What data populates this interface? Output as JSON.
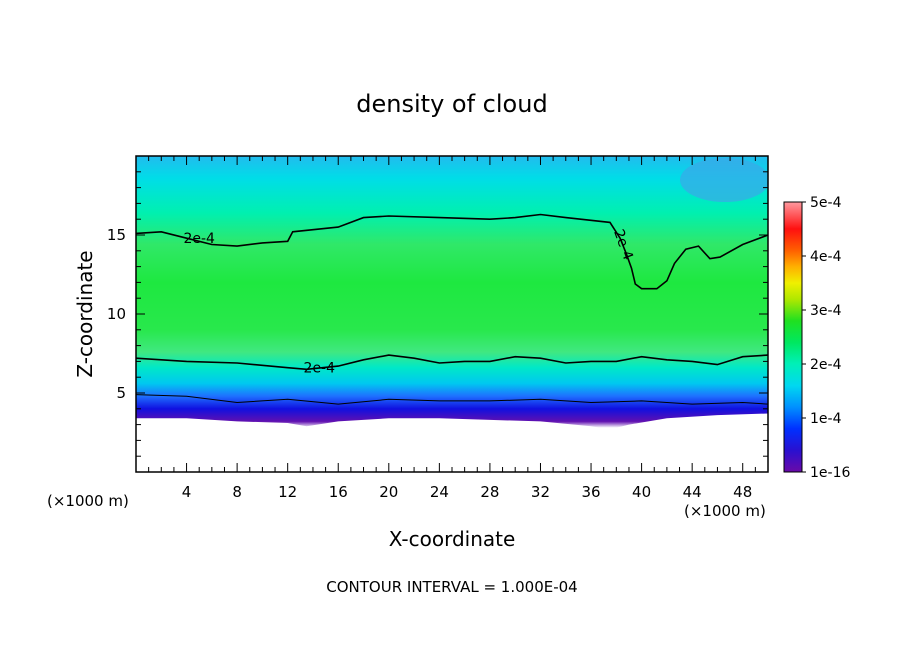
{
  "chart_data": {
    "type": "heatmap",
    "title": "density of cloud",
    "xlabel": "X-coordinate",
    "ylabel": "Z-coordinate",
    "x_unit": "(×1000 m)",
    "y_unit": "(×1000 m)",
    "xlim": [
      0,
      50
    ],
    "ylim": [
      0,
      20
    ],
    "x_ticks": [
      4,
      8,
      12,
      16,
      20,
      24,
      28,
      32,
      36,
      40,
      44,
      48
    ],
    "y_ticks": [
      5,
      10,
      15
    ],
    "footer": "CONTOUR INTERVAL = 1.000E-04",
    "colorbar": {
      "min": 1e-16,
      "max": 0.0005,
      "tick_values": [
        1e-16,
        0.0001,
        0.0002,
        0.0003,
        0.0004,
        0.0005
      ],
      "tick_labels": [
        "1e-16",
        "1e-4",
        "2e-4",
        "3e-4",
        "4e-4",
        "5e-4"
      ]
    },
    "contour_labels": [
      {
        "text": "2e-4",
        "x": 5.0,
        "z": 14.8
      },
      {
        "text": "2e-4",
        "x": 38.6,
        "z": 14.4
      },
      {
        "text": "2e-4",
        "x": 14.5,
        "z": 6.6
      }
    ],
    "contours": [
      {
        "level": 0.0002,
        "name": "upper",
        "points": [
          [
            0,
            15.1
          ],
          [
            2,
            15.2
          ],
          [
            4,
            14.8
          ],
          [
            6,
            14.4
          ],
          [
            8,
            14.3
          ],
          [
            10,
            14.5
          ],
          [
            12,
            14.6
          ],
          [
            12.4,
            15.2
          ],
          [
            16,
            15.5
          ],
          [
            18,
            16.1
          ],
          [
            20,
            16.2
          ],
          [
            24,
            16.1
          ],
          [
            28,
            16.0
          ],
          [
            30,
            16.1
          ],
          [
            32,
            16.3
          ],
          [
            34,
            16.1
          ],
          [
            37.5,
            15.8
          ],
          [
            38.3,
            14.8
          ],
          [
            38.8,
            13.8
          ],
          [
            39.2,
            12.9
          ],
          [
            39.5,
            11.9
          ],
          [
            40,
            11.6
          ],
          [
            41.2,
            11.6
          ],
          [
            42,
            12.1
          ],
          [
            42.6,
            13.2
          ],
          [
            43.5,
            14.1
          ],
          [
            44.5,
            14.3
          ],
          [
            45.4,
            13.5
          ],
          [
            46.2,
            13.6
          ],
          [
            48,
            14.4
          ],
          [
            50,
            15.0
          ]
        ]
      },
      {
        "level": 0.0002,
        "name": "lower",
        "points": [
          [
            0,
            7.2
          ],
          [
            4,
            7.0
          ],
          [
            8,
            6.9
          ],
          [
            12,
            6.6
          ],
          [
            13.5,
            6.5
          ],
          [
            16,
            6.7
          ],
          [
            18,
            7.1
          ],
          [
            20,
            7.4
          ],
          [
            22,
            7.2
          ],
          [
            24,
            6.9
          ],
          [
            26,
            7.0
          ],
          [
            28,
            7.0
          ],
          [
            30,
            7.3
          ],
          [
            32,
            7.2
          ],
          [
            34,
            6.9
          ],
          [
            36,
            7.0
          ],
          [
            38,
            7.0
          ],
          [
            40,
            7.3
          ],
          [
            42,
            7.1
          ],
          [
            44,
            7.0
          ],
          [
            46,
            6.8
          ],
          [
            48,
            7.3
          ],
          [
            50,
            7.4
          ]
        ]
      },
      {
        "level": 0.0001,
        "name": "low",
        "points": [
          [
            0,
            4.9
          ],
          [
            4,
            4.8
          ],
          [
            8,
            4.4
          ],
          [
            12,
            4.6
          ],
          [
            16,
            4.3
          ],
          [
            20,
            4.6
          ],
          [
            24,
            4.5
          ],
          [
            28,
            4.5
          ],
          [
            32,
            4.6
          ],
          [
            36,
            4.4
          ],
          [
            40,
            4.5
          ],
          [
            44,
            4.3
          ],
          [
            48,
            4.4
          ],
          [
            50,
            4.3
          ]
        ]
      }
    ],
    "cloud_base": [
      [
        0,
        3.4
      ],
      [
        4,
        3.4
      ],
      [
        8,
        3.2
      ],
      [
        12,
        3.1
      ],
      [
        13.5,
        2.9
      ],
      [
        16,
        3.2
      ],
      [
        20,
        3.4
      ],
      [
        24,
        3.4
      ],
      [
        28,
        3.3
      ],
      [
        32,
        3.2
      ],
      [
        36,
        2.9
      ],
      [
        37.5,
        2.7
      ],
      [
        39,
        3.0
      ],
      [
        42,
        3.4
      ],
      [
        46,
        3.6
      ],
      [
        50,
        3.7
      ]
    ]
  }
}
